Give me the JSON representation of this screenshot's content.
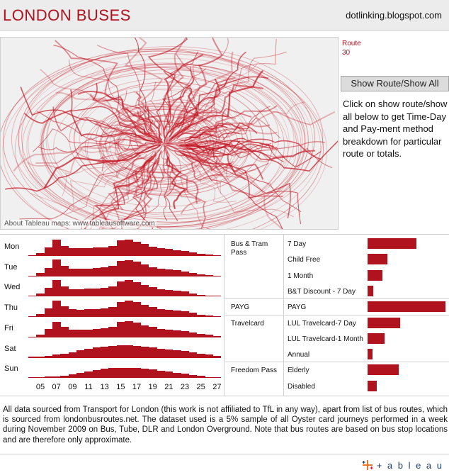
{
  "header": {
    "title": "LONDON BUSES",
    "blog": "dotlinking.blogspot.com"
  },
  "map": {
    "credit": "About Tableau maps: www.tableausoftware.com",
    "icon": "map-routes",
    "route_color": "#c4121f"
  },
  "route_filter": {
    "label": "Route",
    "value": "30"
  },
  "show_button": {
    "label": "Show Route/Show All"
  },
  "instructions": {
    "text": "Click on show route/show all below to get Time-Day and Pay-ment method breakdown for particular route or totals."
  },
  "chart_data": [
    {
      "type": "bar",
      "chart": "time-day",
      "xlabel": "",
      "ylabel": "",
      "hour_ticks": [
        "05",
        "07",
        "09",
        "11",
        "13",
        "15",
        "17",
        "19",
        "21",
        "23",
        "25",
        "27"
      ],
      "hours": [
        4,
        5,
        6,
        7,
        8,
        9,
        10,
        11,
        12,
        13,
        14,
        15,
        16,
        17,
        18,
        19,
        20,
        21,
        22,
        23,
        24,
        25,
        26,
        27
      ],
      "series": [
        {
          "name": "Mon",
          "values": [
            0.05,
            0.18,
            0.5,
            0.95,
            0.6,
            0.45,
            0.44,
            0.46,
            0.48,
            0.52,
            0.6,
            0.9,
            0.95,
            0.85,
            0.7,
            0.55,
            0.45,
            0.4,
            0.35,
            0.28,
            0.2,
            0.12,
            0.07,
            0.04
          ]
        },
        {
          "name": "Tue",
          "values": [
            0.05,
            0.18,
            0.5,
            0.97,
            0.62,
            0.45,
            0.44,
            0.46,
            0.48,
            0.52,
            0.6,
            0.9,
            0.96,
            0.86,
            0.7,
            0.55,
            0.45,
            0.4,
            0.36,
            0.28,
            0.2,
            0.12,
            0.07,
            0.04
          ]
        },
        {
          "name": "Wed",
          "values": [
            0.05,
            0.18,
            0.5,
            0.97,
            0.62,
            0.45,
            0.44,
            0.46,
            0.48,
            0.52,
            0.6,
            0.9,
            0.96,
            0.86,
            0.7,
            0.55,
            0.45,
            0.4,
            0.36,
            0.3,
            0.2,
            0.12,
            0.07,
            0.04
          ]
        },
        {
          "name": "Thu",
          "values": [
            0.05,
            0.18,
            0.5,
            0.96,
            0.62,
            0.45,
            0.44,
            0.46,
            0.48,
            0.52,
            0.6,
            0.9,
            0.96,
            0.88,
            0.72,
            0.58,
            0.48,
            0.42,
            0.38,
            0.32,
            0.24,
            0.15,
            0.09,
            0.05
          ]
        },
        {
          "name": "Fri",
          "values": [
            0.05,
            0.17,
            0.48,
            0.92,
            0.6,
            0.45,
            0.45,
            0.47,
            0.5,
            0.55,
            0.63,
            0.9,
            0.95,
            0.85,
            0.72,
            0.6,
            0.5,
            0.45,
            0.42,
            0.36,
            0.3,
            0.22,
            0.14,
            0.08
          ]
        },
        {
          "name": "Sat",
          "values": [
            0.06,
            0.08,
            0.12,
            0.18,
            0.25,
            0.33,
            0.42,
            0.52,
            0.6,
            0.66,
            0.7,
            0.72,
            0.72,
            0.7,
            0.66,
            0.6,
            0.54,
            0.48,
            0.44,
            0.38,
            0.32,
            0.25,
            0.17,
            0.1
          ]
        },
        {
          "name": "Sun",
          "values": [
            0.06,
            0.07,
            0.08,
            0.1,
            0.14,
            0.2,
            0.28,
            0.38,
            0.47,
            0.54,
            0.58,
            0.6,
            0.6,
            0.58,
            0.55,
            0.5,
            0.44,
            0.38,
            0.32,
            0.25,
            0.18,
            0.12,
            0.07,
            0.04
          ]
        }
      ]
    },
    {
      "type": "bar",
      "chart": "payment-method",
      "xlabel": "",
      "ylabel": "",
      "rows": [
        {
          "category": "Bus & Tram Pass",
          "type": "7 Day",
          "value": 0.63
        },
        {
          "category": "",
          "type": "Child Free",
          "value": 0.25
        },
        {
          "category": "",
          "type": "1 Month",
          "value": 0.19
        },
        {
          "category": "",
          "type": "B&T Discount - 7 Day",
          "value": 0.07
        },
        {
          "category": "PAYG",
          "type": "PAYG",
          "value": 1.0
        },
        {
          "category": "Travelcard",
          "type": "LUL Travelcard-7 Day",
          "value": 0.42
        },
        {
          "category": "",
          "type": "LUL Travelcard-1 Month",
          "value": 0.22
        },
        {
          "category": "",
          "type": "Annual",
          "value": 0.06
        },
        {
          "category": "Freedom Pass",
          "type": "Elderly",
          "value": 0.4
        },
        {
          "category": "",
          "type": "Disabled",
          "value": 0.12
        }
      ]
    }
  ],
  "footnote": "All data sourced from Transport for London (this work is not affiliated to TfL in any way), apart from list of bus routes, which is sourced from londonbusroutes.net. The dataset used is a 5% sample of all Oyster card journeys performed in a week during November 2009 on Bus, Tube, DLR and London Overground. Note that bus routes are based on bus stop locations and are therefore only approximate.",
  "footer": {
    "logo_text": "+ a b l e a u",
    "logo_icon": "tableau-cross-icon"
  },
  "colors": {
    "accent": "#b0121e",
    "bar": "#b0121e"
  }
}
